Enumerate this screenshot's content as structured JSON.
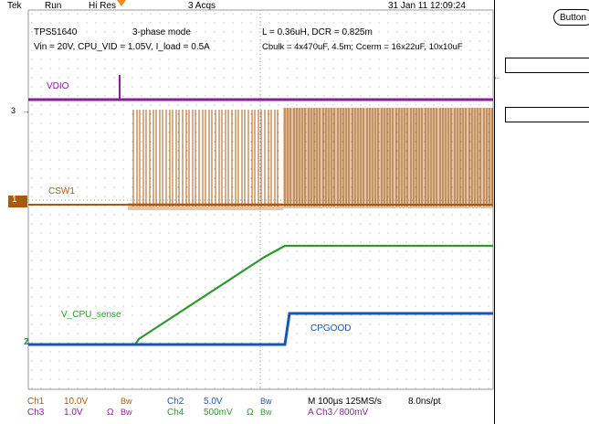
{
  "status_bar": {
    "brand": "Tek",
    "run_state": "Run",
    "acq_mode": "Hi Res",
    "acq_count": "3 Acqs",
    "datetime": "31 Jan 11 12:09:24"
  },
  "annotations": {
    "device": "TPS51640",
    "mode": "3-phase mode",
    "conditions": "Vin = 20V, CPU_VID = 1.05V, I_load = 0.5A",
    "inductor": "L = 0.36uH, DCR = 0.825m",
    "caps": "Cbulk = 4x470uF, 4.5m;  Ccerm = 16x22uF, 10x10uF"
  },
  "traces": {
    "vdio": "VDIO",
    "csw1": "CSW1",
    "vcpu": "V_CPU_sense",
    "cpgood": "CPGOOD"
  },
  "markers": {
    "ch3": "3",
    "ch1": "1",
    "ch2": "2",
    "ch4": "4"
  },
  "channel_settings": {
    "ch1_name": "Ch1",
    "ch1_scale": "10.0V",
    "ch1_bw": "Bw",
    "ch2_name": "Ch2",
    "ch2_scale": "5.0V",
    "ch2_bw": "Bw",
    "ch3_name": "Ch3",
    "ch3_scale": "1.0V",
    "ch3_ohm": "Ω",
    "ch3_bw": "Bw",
    "ch4_name": "Ch4",
    "ch4_scale": "500mV",
    "ch4_ohm": "Ω",
    "ch4_bw": "Bw"
  },
  "timebase": {
    "horizontal": "M 100µs 125MS/s",
    "resolution": "8.0ns/pt",
    "trigger": "A  Ch3  ⁄  800mV"
  },
  "side_menu": {
    "button_label": "Button"
  },
  "colors": {
    "ch1": "#a85a10",
    "ch2": "#1a55b8",
    "ch3": "#8a1e9a",
    "ch4": "#2a9a2a",
    "trigger": "#f08a24"
  }
}
